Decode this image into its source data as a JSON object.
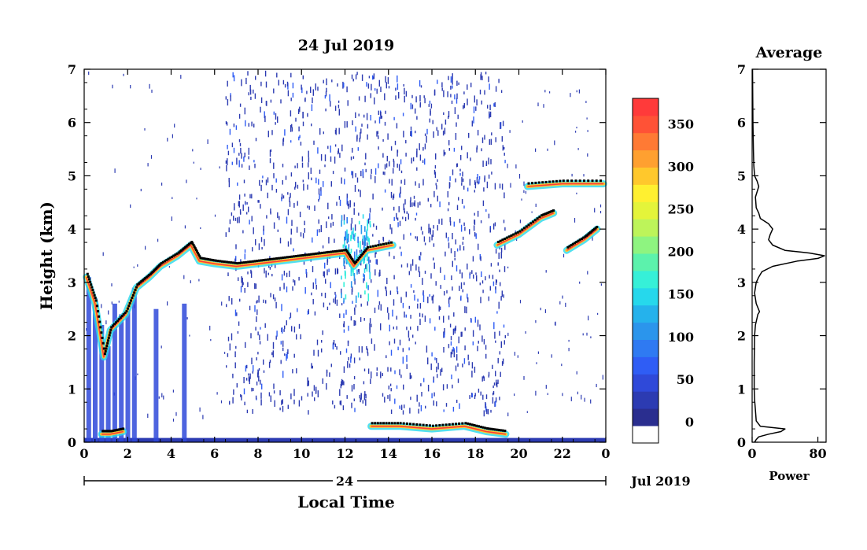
{
  "chart_data": [
    {
      "type": "heatmap",
      "title": "24 Jul 2019",
      "xlabel": "Local Time",
      "ylabel": "Height (km)",
      "xlim": [
        0,
        24
      ],
      "ylim": [
        0,
        7
      ],
      "x_ticks": [
        "0",
        "2",
        "4",
        "6",
        "8",
        "10",
        "12",
        "14",
        "16",
        "18",
        "20",
        "22",
        "0"
      ],
      "y_ticks": [
        "0",
        "1",
        "2",
        "3",
        "4",
        "5",
        "6",
        "7"
      ],
      "date_axis": {
        "day_label": "24",
        "month_label": "Jul 2019"
      },
      "colorbar": {
        "ticks": [
          "0",
          "50",
          "100",
          "150",
          "200",
          "250",
          "300",
          "350"
        ],
        "range": [
          -25,
          380
        ],
        "colors": [
          "#ffffff",
          "#2a2e8f",
          "#2c3bb2",
          "#2f49d9",
          "#2f5df5",
          "#2f7af2",
          "#2b95ec",
          "#25b2ec",
          "#26d8ec",
          "#36f0d8",
          "#5cf2ac",
          "#8ef480",
          "#bdf45a",
          "#e4f43a",
          "#fff030",
          "#ffc82c",
          "#ffa030",
          "#ff7a34",
          "#ff5236",
          "#ff3a3a"
        ]
      },
      "layers": [
        {
          "name": "cloud-layer-main",
          "points": [
            [
              0.1,
              3.1
            ],
            [
              0.5,
              2.6
            ],
            [
              0.9,
              1.6
            ],
            [
              1.2,
              2.1
            ],
            [
              1.9,
              2.4
            ],
            [
              2.4,
              2.9
            ],
            [
              3.0,
              3.1
            ],
            [
              3.5,
              3.3
            ],
            [
              4.3,
              3.5
            ],
            [
              4.9,
              3.7
            ],
            [
              5.3,
              3.4
            ],
            [
              6.0,
              3.35
            ],
            [
              7.0,
              3.3
            ],
            [
              8.0,
              3.35
            ],
            [
              9.0,
              3.4
            ],
            [
              10.0,
              3.45
            ],
            [
              11.0,
              3.5
            ],
            [
              12.0,
              3.55
            ],
            [
              12.4,
              3.3
            ],
            [
              13.0,
              3.6
            ],
            [
              14.2,
              3.7
            ]
          ]
        },
        {
          "name": "cloud-layer-evening",
          "points": [
            [
              19.0,
              3.7
            ],
            [
              20.0,
              3.9
            ],
            [
              21.0,
              4.2
            ],
            [
              21.6,
              4.3
            ]
          ]
        },
        {
          "name": "cloud-layer-late",
          "points": [
            [
              22.2,
              3.6
            ],
            [
              23.0,
              3.8
            ],
            [
              23.6,
              4.0
            ]
          ]
        },
        {
          "name": "cloud-layer-high",
          "points": [
            [
              20.4,
              4.8
            ],
            [
              22.0,
              4.85
            ],
            [
              23.9,
              4.85
            ]
          ]
        },
        {
          "name": "boundary-layer",
          "points": [
            [
              13.2,
              0.3
            ],
            [
              14.5,
              0.3
            ],
            [
              16.0,
              0.25
            ],
            [
              17.5,
              0.3
            ],
            [
              18.5,
              0.2
            ],
            [
              19.4,
              0.15
            ]
          ]
        },
        {
          "name": "early-low-cloud",
          "points": [
            [
              0.8,
              0.15
            ],
            [
              1.2,
              0.15
            ],
            [
              1.8,
              0.2
            ]
          ]
        }
      ],
      "noise_region": {
        "x": [
          6.5,
          19.4
        ],
        "y": [
          0.6,
          7
        ]
      }
    },
    {
      "type": "line",
      "title": "Average",
      "xlabel": "Power",
      "ylabel": "",
      "xlim": [
        0,
        90
      ],
      "ylim": [
        0,
        7
      ],
      "x_ticks": [
        "0",
        "80"
      ],
      "y_ticks": [
        "0",
        "1",
        "2",
        "3",
        "4",
        "5",
        "6",
        "7"
      ],
      "series": [
        {
          "y": [
            0.0,
            0.05,
            0.1,
            0.15,
            0.2,
            0.25,
            0.3,
            0.4,
            0.6,
            0.8,
            1.0,
            1.5,
            2.0,
            2.2,
            2.4,
            2.45,
            2.6,
            2.8,
            3.0,
            3.1,
            3.2,
            3.3,
            3.4,
            3.45,
            3.5,
            3.55,
            3.6,
            3.7,
            3.8,
            3.9,
            4.0,
            4.1,
            4.2,
            4.3,
            4.4,
            4.6,
            4.8,
            4.9,
            5.0,
            5.2,
            5.5,
            6.0,
            7.0
          ],
          "x": [
            3,
            5,
            8,
            20,
            35,
            40,
            10,
            5,
            4,
            3,
            2.5,
            2.5,
            3,
            4,
            7,
            9,
            5,
            3,
            5,
            8,
            12,
            25,
            55,
            80,
            88,
            70,
            40,
            25,
            20,
            22,
            25,
            20,
            10,
            8,
            5,
            4,
            8,
            6,
            3,
            2,
            1.5,
            1,
            0.5
          ]
        }
      ]
    }
  ]
}
